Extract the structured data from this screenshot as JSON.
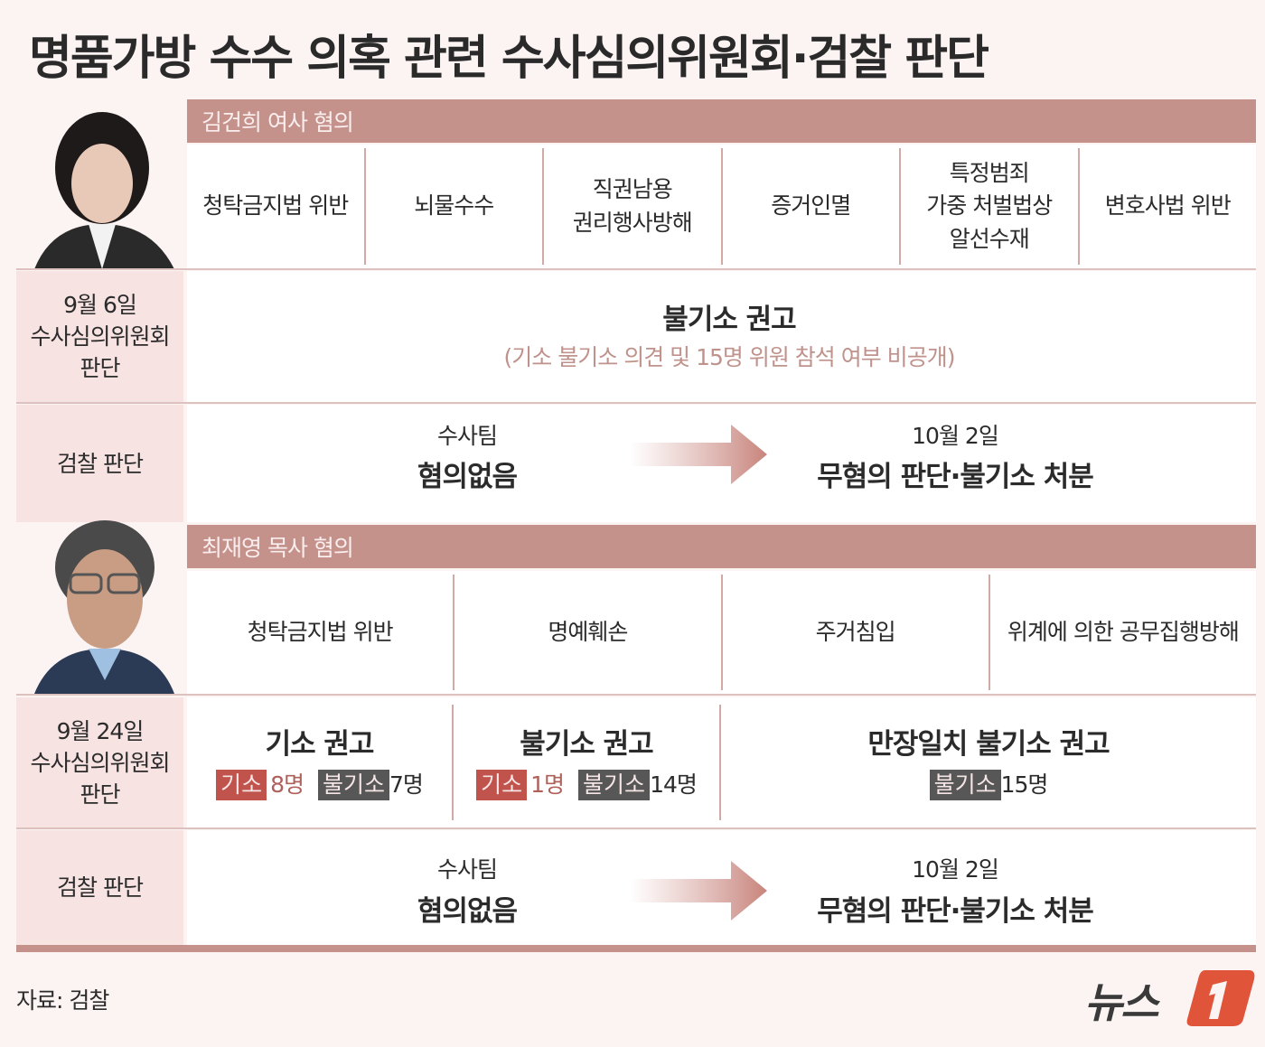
{
  "title": "명품가방 수수 의혹 관련 수사심의위원회·검찰 판단",
  "section1": {
    "header": "김건희 여사 혐의",
    "charges": [
      "청탁금지법 위반",
      "뇌물수수",
      "직권남용\n권리행사방해",
      "증거인멸",
      "특정범죄\n가중 처벌법상\n알선수재",
      "변호사법 위반"
    ],
    "committee": {
      "label": "9월 6일\n수사심의위원회\n판단",
      "result": "불기소 권고",
      "note": "(기소 불기소 의견 및 15명 위원 참석 여부 비공개)"
    },
    "prosecution": {
      "label": "검찰 판단",
      "team_label": "수사팀",
      "team_result": "혐의없음",
      "date": "10월 2일",
      "final": "무혐의 판단·불기소 처분"
    }
  },
  "section2": {
    "header": "최재영 목사 혐의",
    "charges": [
      "청탁금지법 위반",
      "명예훼손",
      "주거침입",
      "위계에 의한 공무집행방해"
    ],
    "committee": {
      "label": "9월 24일\n수사심의위원회\n판단",
      "results": [
        {
          "title": "기소 권고",
          "indict_tag": "기소",
          "indict": "8명",
          "non_tag": "불기소",
          "non": "7명"
        },
        {
          "title": "불기소 권고",
          "indict_tag": "기소",
          "indict": "1명",
          "non_tag": "불기소",
          "non": "14명"
        },
        {
          "title": "만장일치 불기소 권고",
          "non_tag": "불기소",
          "non": "15명"
        }
      ]
    },
    "prosecution": {
      "label": "검찰 판단",
      "team_label": "수사팀",
      "team_result": "혐의없음",
      "date": "10월 2일",
      "final": "무혐의 판단·불기소 처분"
    }
  },
  "source": "자료: 검찰",
  "logo": "뉴스1",
  "colors": {
    "header": "#c4918b",
    "indict": "#c0544c",
    "non_indict": "#575757",
    "logo": "#e0553a"
  }
}
